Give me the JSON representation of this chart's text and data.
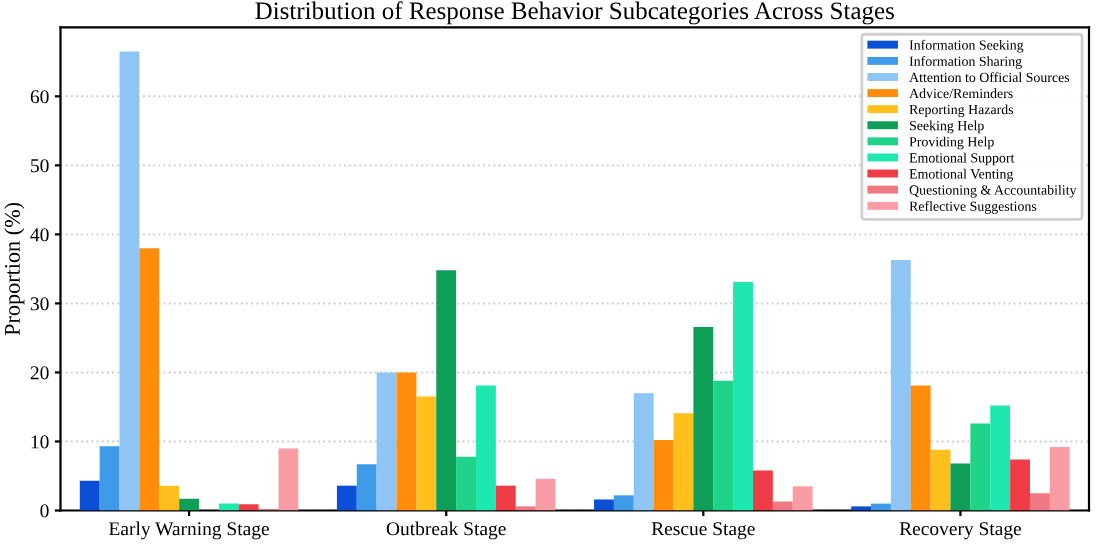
{
  "chart_data": {
    "type": "bar",
    "title": "Distribution of Response Behavior Subcategories Across Stages",
    "ylabel": "Proportion (%)",
    "categories": [
      "Early Warning Stage",
      "Outbreak Stage",
      "Rescue Stage",
      "Recovery Stage"
    ],
    "series": [
      {
        "name": "Information Seeking",
        "color": "#0a4fd6",
        "values": [
          4.3,
          3.6,
          1.6,
          0.6
        ]
      },
      {
        "name": "Information Sharing",
        "color": "#3f9be8",
        "values": [
          9.3,
          6.7,
          2.2,
          1.0
        ]
      },
      {
        "name": "Attention to Official Sources",
        "color": "#8ec5f5",
        "values": [
          66.5,
          20.0,
          17.0,
          36.3
        ]
      },
      {
        "name": "Advice/Reminders",
        "color": "#ff8c0a",
        "values": [
          38.0,
          20.0,
          10.2,
          18.1
        ]
      },
      {
        "name": "Reporting Hazards",
        "color": "#ffc01e",
        "values": [
          3.6,
          16.5,
          14.1,
          8.8
        ]
      },
      {
        "name": "Seeking Help",
        "color": "#0f9e58",
        "values": [
          1.7,
          34.8,
          26.6,
          6.8
        ]
      },
      {
        "name": "Providing Help",
        "color": "#1ed488",
        "values": [
          null,
          7.8,
          18.8,
          12.6
        ]
      },
      {
        "name": "Emotional Support",
        "color": "#1ee8b0",
        "values": [
          1.0,
          18.1,
          33.1,
          15.2
        ]
      },
      {
        "name": "Emotional Venting",
        "color": "#f03c46",
        "values": [
          0.9,
          3.6,
          5.8,
          7.4
        ]
      },
      {
        "name": "Questioning & Accountability",
        "color": "#f07882",
        "values": [
          0.2,
          0.6,
          1.3,
          2.5
        ]
      },
      {
        "name": "Reflective Suggestions",
        "color": "#fa9ca4",
        "values": [
          9.0,
          4.6,
          3.5,
          9.2
        ]
      }
    ],
    "ylim": [
      0,
      70
    ],
    "yticks": [
      0,
      10,
      20,
      30,
      40,
      50,
      60
    ],
    "grid": "y",
    "legend": "top right"
  }
}
